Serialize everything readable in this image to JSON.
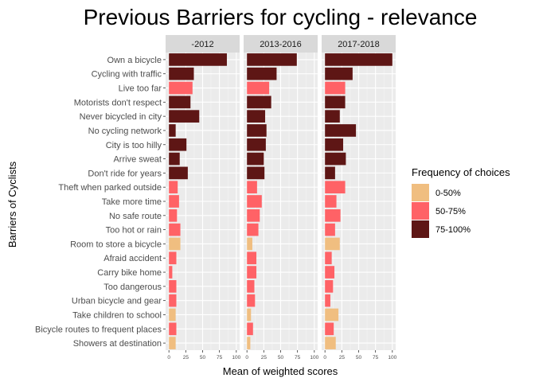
{
  "chart_data": {
    "type": "bar",
    "orientation": "horizontal",
    "title": "Previous Barriers for cycling - relevance",
    "xlabel": "Mean of weighted scores",
    "ylabel": "Barriers of Cyclists",
    "xlim": [
      0,
      100
    ],
    "xticks": [
      "0",
      "25",
      "50",
      "75",
      "100"
    ],
    "grid": true,
    "legend": {
      "title": "Frequency of choices",
      "placement": "right",
      "items": [
        {
          "label": "0-50%",
          "color": "#F0BE80"
        },
        {
          "label": "50-75%",
          "color": "#FF6266"
        },
        {
          "label": "75-100%",
          "color": "#5E1615"
        }
      ]
    },
    "categories": [
      "Own a bicycle",
      "Cycling with traffic",
      "Live too far",
      "Motorists don't respect",
      "Never bicycled in city",
      "No cycling network",
      "City is too hilly",
      "Arrive sweat",
      "Don't ride for years",
      "Theft when parked outside",
      "Take more time",
      "No safe route",
      "Too hot or rain",
      "Room to store a bicycle",
      "Afraid accident",
      "Carry bike home",
      "Too dangerous",
      "Urban bicycle and gear",
      "Take children to school",
      "Bicycle routes to frequent places",
      "Showers at destination"
    ],
    "panels": [
      {
        "name": "-2012",
        "values": [
          86,
          37,
          35,
          32,
          45,
          10,
          26,
          16,
          28,
          13,
          15,
          12,
          17,
          17,
          11,
          5,
          11,
          11,
          10,
          11,
          10
        ],
        "frequency": [
          "75-100%",
          "75-100%",
          "50-75%",
          "75-100%",
          "75-100%",
          "75-100%",
          "75-100%",
          "75-100%",
          "75-100%",
          "50-75%",
          "50-75%",
          "50-75%",
          "50-75%",
          "0-50%",
          "50-75%",
          "50-75%",
          "50-75%",
          "50-75%",
          "0-50%",
          "50-75%",
          "0-50%"
        ]
      },
      {
        "name": "2013-2016",
        "values": [
          74,
          44,
          33,
          36,
          27,
          29,
          28,
          25,
          26,
          15,
          22,
          19,
          17,
          8,
          14,
          14,
          11,
          12,
          6,
          9,
          5
        ],
        "frequency": [
          "75-100%",
          "75-100%",
          "50-75%",
          "75-100%",
          "75-100%",
          "75-100%",
          "75-100%",
          "75-100%",
          "75-100%",
          "50-75%",
          "50-75%",
          "50-75%",
          "50-75%",
          "0-50%",
          "50-75%",
          "50-75%",
          "50-75%",
          "50-75%",
          "0-50%",
          "50-75%",
          "0-50%"
        ]
      },
      {
        "name": "2017-2018",
        "values": [
          100,
          41,
          30,
          30,
          22,
          46,
          27,
          31,
          15,
          30,
          17,
          23,
          15,
          22,
          10,
          14,
          12,
          8,
          20,
          13,
          16
        ],
        "frequency": [
          "75-100%",
          "75-100%",
          "50-75%",
          "75-100%",
          "75-100%",
          "75-100%",
          "75-100%",
          "75-100%",
          "75-100%",
          "50-75%",
          "50-75%",
          "50-75%",
          "50-75%",
          "0-50%",
          "50-75%",
          "50-75%",
          "50-75%",
          "50-75%",
          "0-50%",
          "50-75%",
          "0-50%"
        ]
      }
    ]
  }
}
